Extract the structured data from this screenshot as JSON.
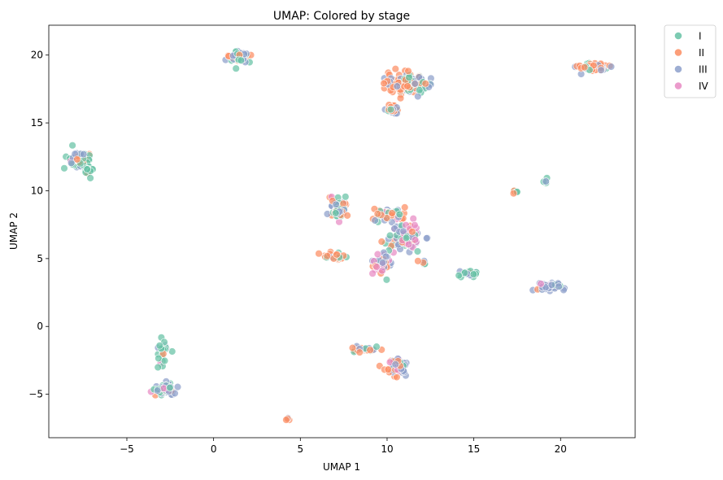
{
  "chart_data": {
    "type": "scatter",
    "title": "UMAP: Colored by stage",
    "xlabel": "UMAP 1",
    "ylabel": "UMAP 2",
    "xlim": [
      -9.5,
      24.3
    ],
    "ylim": [
      -8.2,
      22.2
    ],
    "xticks": [
      -5,
      0,
      5,
      10,
      15,
      20
    ],
    "yticks": [
      -5,
      0,
      5,
      10,
      15,
      20
    ],
    "xtick_labels": [
      "−5",
      "0",
      "5",
      "10",
      "15",
      "20"
    ],
    "ytick_labels": [
      "−5",
      "0",
      "5",
      "10",
      "15",
      "20"
    ],
    "grid": false,
    "legend_position": "outside-top-right",
    "series": [
      {
        "name": "I",
        "color": "#66c2a5"
      },
      {
        "name": "II",
        "color": "#fc8d62"
      },
      {
        "name": "III",
        "color": "#8da0cb"
      },
      {
        "name": "IV",
        "color": "#e78ac3"
      }
    ],
    "clusters": [
      {
        "cx": -7.6,
        "cy": 12.2,
        "rx": 0.6,
        "ry": 0.7,
        "n": 60,
        "mix": [
          0.45,
          0.15,
          0.35,
          0.05
        ]
      },
      {
        "cx": -7.2,
        "cy": 11.5,
        "rx": 0.3,
        "ry": 0.4,
        "n": 15,
        "mix": [
          0.7,
          0.2,
          0.1,
          0.0
        ]
      },
      {
        "cx": 1.4,
        "cy": 19.9,
        "rx": 0.55,
        "ry": 0.4,
        "n": 45,
        "mix": [
          0.35,
          0.4,
          0.25,
          0.0
        ]
      },
      {
        "cx": 11.2,
        "cy": 17.9,
        "rx": 1.0,
        "ry": 0.7,
        "n": 120,
        "mix": [
          0.2,
          0.55,
          0.25,
          0.0
        ]
      },
      {
        "cx": 10.3,
        "cy": 16.0,
        "rx": 0.4,
        "ry": 0.4,
        "n": 18,
        "mix": [
          0.3,
          0.5,
          0.2,
          0.0
        ]
      },
      {
        "cx": 21.8,
        "cy": 19.1,
        "rx": 0.8,
        "ry": 0.25,
        "n": 60,
        "mix": [
          0.2,
          0.5,
          0.3,
          0.0
        ]
      },
      {
        "cx": 17.4,
        "cy": 9.9,
        "rx": 0.2,
        "ry": 0.15,
        "n": 6,
        "mix": [
          0.7,
          0.3,
          0.0,
          0.0
        ]
      },
      {
        "cx": 19.1,
        "cy": 10.7,
        "rx": 0.15,
        "ry": 0.15,
        "n": 4,
        "mix": [
          0.8,
          0.0,
          0.2,
          0.0
        ]
      },
      {
        "cx": 7.2,
        "cy": 8.6,
        "rx": 0.5,
        "ry": 0.8,
        "n": 55,
        "mix": [
          0.35,
          0.4,
          0.2,
          0.05
        ]
      },
      {
        "cx": 7.0,
        "cy": 5.2,
        "rx": 0.6,
        "ry": 0.3,
        "n": 28,
        "mix": [
          0.3,
          0.6,
          0.1,
          0.0
        ]
      },
      {
        "cx": 10.1,
        "cy": 8.2,
        "rx": 0.8,
        "ry": 0.5,
        "n": 45,
        "mix": [
          0.35,
          0.35,
          0.25,
          0.05
        ]
      },
      {
        "cx": 11.0,
        "cy": 6.6,
        "rx": 0.8,
        "ry": 1.0,
        "n": 90,
        "mix": [
          0.15,
          0.15,
          0.3,
          0.4
        ]
      },
      {
        "cx": 9.6,
        "cy": 4.6,
        "rx": 0.5,
        "ry": 0.7,
        "n": 45,
        "mix": [
          0.05,
          0.3,
          0.35,
          0.3
        ]
      },
      {
        "cx": 12.1,
        "cy": 4.7,
        "rx": 0.2,
        "ry": 0.2,
        "n": 6,
        "mix": [
          0.4,
          0.4,
          0.2,
          0.0
        ]
      },
      {
        "cx": 14.7,
        "cy": 3.9,
        "rx": 0.5,
        "ry": 0.2,
        "n": 20,
        "mix": [
          0.65,
          0.1,
          0.25,
          0.0
        ]
      },
      {
        "cx": 19.3,
        "cy": 2.9,
        "rx": 0.7,
        "ry": 0.25,
        "n": 45,
        "mix": [
          0.05,
          0.05,
          0.8,
          0.1
        ]
      },
      {
        "cx": -2.9,
        "cy": -1.5,
        "rx": 0.3,
        "ry": 0.6,
        "n": 20,
        "mix": [
          0.8,
          0.05,
          0.1,
          0.05
        ]
      },
      {
        "cx": -3.1,
        "cy": -2.5,
        "rx": 0.3,
        "ry": 0.5,
        "n": 6,
        "mix": [
          0.4,
          0.0,
          0.0,
          0.6
        ]
      },
      {
        "cx": -2.8,
        "cy": -4.6,
        "rx": 0.6,
        "ry": 0.4,
        "n": 55,
        "mix": [
          0.35,
          0.1,
          0.4,
          0.15
        ]
      },
      {
        "cx": 4.3,
        "cy": -6.8,
        "rx": 0.15,
        "ry": 0.1,
        "n": 4,
        "mix": [
          0.0,
          0.6,
          0.4,
          0.0
        ]
      },
      {
        "cx": 8.8,
        "cy": -1.7,
        "rx": 0.7,
        "ry": 0.2,
        "n": 28,
        "mix": [
          0.35,
          0.5,
          0.15,
          0.0
        ]
      },
      {
        "cx": 10.6,
        "cy": -3.0,
        "rx": 0.6,
        "ry": 0.6,
        "n": 55,
        "mix": [
          0.1,
          0.35,
          0.45,
          0.1
        ]
      }
    ]
  }
}
